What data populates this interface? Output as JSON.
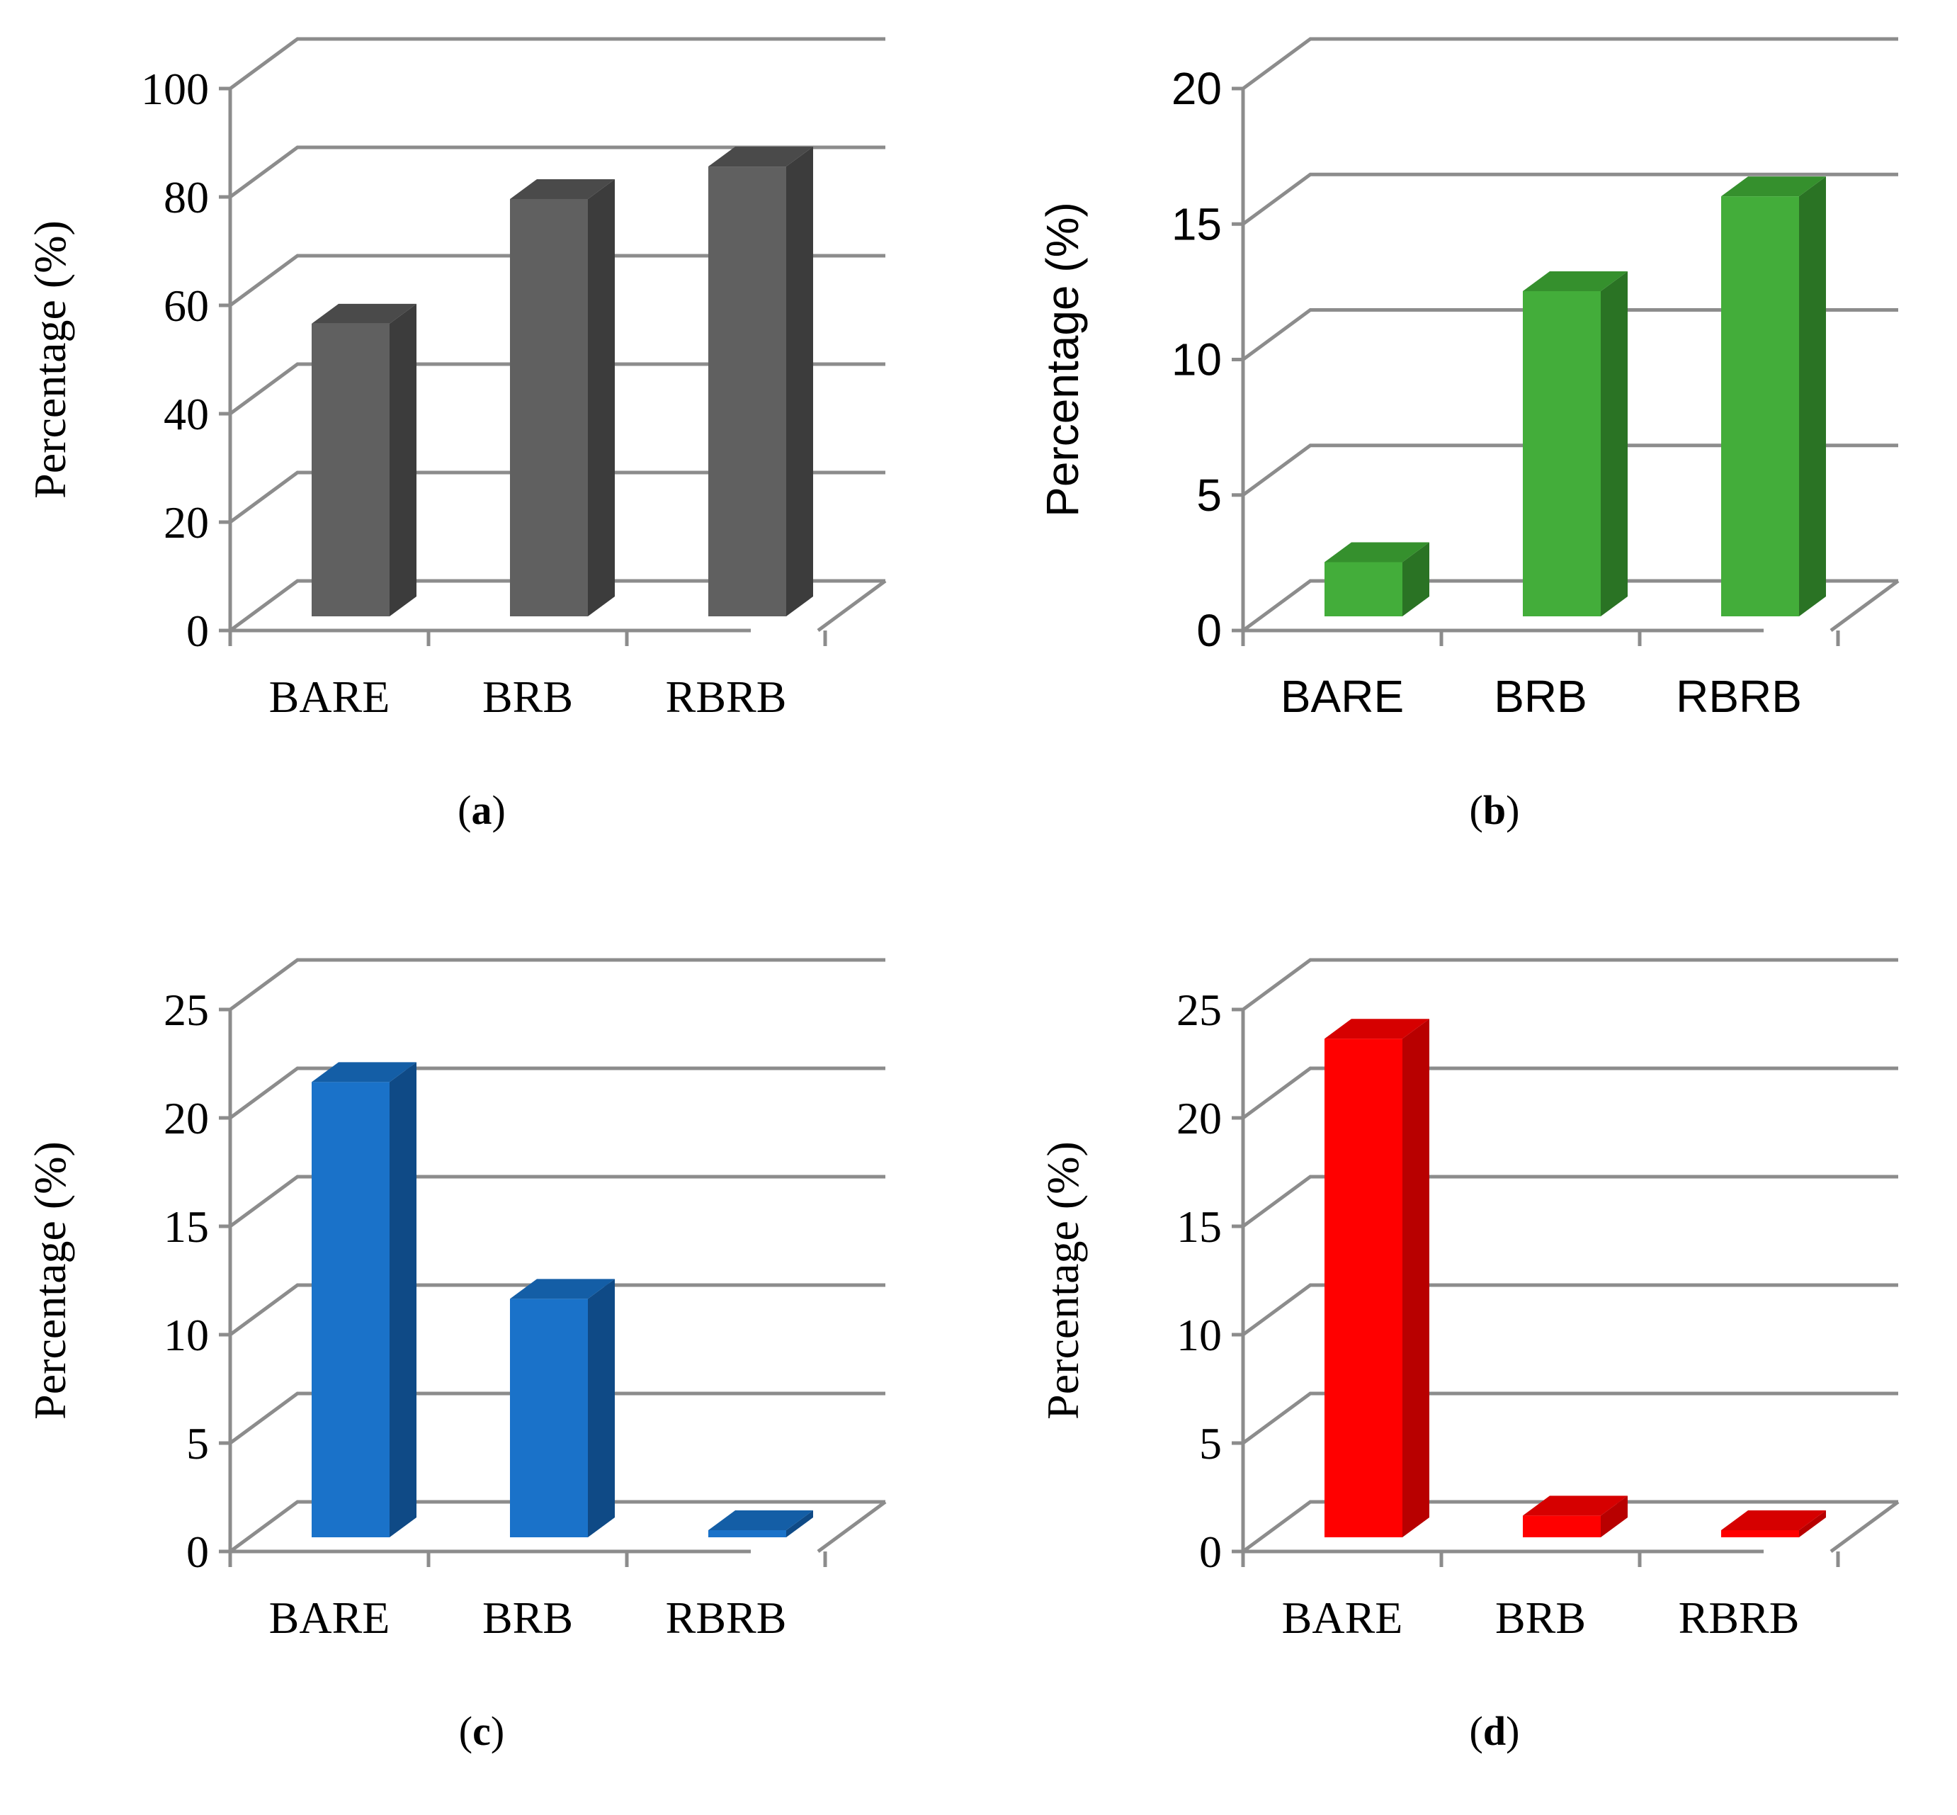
{
  "chart_data": [
    {
      "type": "bar",
      "panel": "a",
      "caption": "a",
      "ylabel": "Percentage (%)",
      "categories": [
        "BARE",
        "BRB",
        "RBRB"
      ],
      "values": [
        54,
        77,
        83
      ],
      "ylim": [
        0,
        100
      ],
      "yticks": [
        0,
        20,
        40,
        60,
        80,
        100
      ],
      "grid": true,
      "color": "#606060",
      "side_color": "#3c3c3c",
      "top_color": "#4a4a4a",
      "font": "serif"
    },
    {
      "type": "bar",
      "panel": "b",
      "caption": "b",
      "ylabel": "Percentage (%)",
      "categories": [
        "BARE",
        "BRB",
        "RBRB"
      ],
      "values": [
        2,
        12,
        15.5
      ],
      "ylim": [
        0,
        20
      ],
      "yticks": [
        0,
        5,
        10,
        15,
        20
      ],
      "grid": true,
      "color": "#43ad3a",
      "side_color": "#2a7324",
      "top_color": "#35902d",
      "font": "sans"
    },
    {
      "type": "bar",
      "panel": "c",
      "caption": "c",
      "ylabel": "Percentage (%)",
      "categories": [
        "BARE",
        "BRB",
        "RBRB"
      ],
      "values": [
        21,
        11,
        0.3
      ],
      "ylim": [
        0,
        25
      ],
      "yticks": [
        0,
        5,
        10,
        15,
        20,
        25
      ],
      "grid": true,
      "color": "#1a72c9",
      "side_color": "#0f4a86",
      "top_color": "#145ea6",
      "font": "serif"
    },
    {
      "type": "bar",
      "panel": "d",
      "caption": "d",
      "ylabel": "Percentage (%)",
      "categories": [
        "BARE",
        "BRB",
        "RBRB"
      ],
      "values": [
        23,
        1,
        0.3
      ],
      "ylim": [
        0,
        25
      ],
      "yticks": [
        0,
        5,
        10,
        15,
        20,
        25
      ],
      "grid": true,
      "color": "#ff0000",
      "side_color": "#b80000",
      "top_color": "#d60000",
      "font": "serif"
    }
  ]
}
